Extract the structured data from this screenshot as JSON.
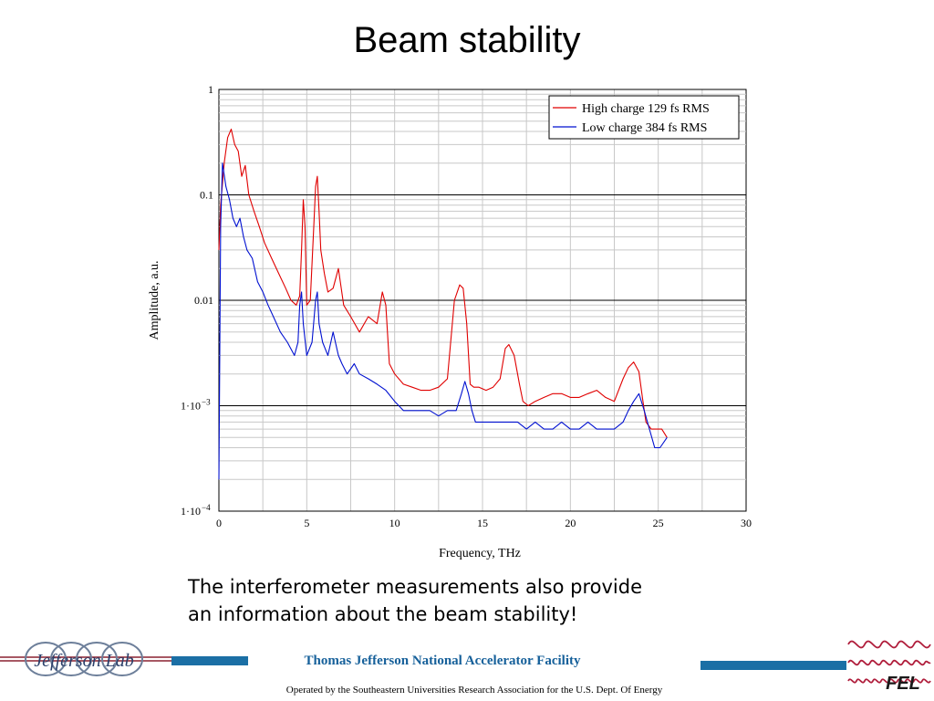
{
  "slide": {
    "title": "Beam stability",
    "caption_line1": "The interferometer measurements also provide",
    "caption_line2": "an information about the beam stability!"
  },
  "footer": {
    "organization": "Thomas Jefferson National Accelerator Facility",
    "operated_by": "Operated by the Southeastern Universities Research Association for the U.S. Dept. Of Energy",
    "left_logo_text": "Jefferson Lab",
    "right_logo_text": "FEL",
    "bar_color": "#1b6fa5"
  },
  "chart_data": {
    "type": "line",
    "xlabel": "Frequency, THz",
    "ylabel": "Amplitude, a.u.",
    "xlim": [
      0,
      30
    ],
    "ylim": [
      0.0001,
      1
    ],
    "yscale": "log",
    "grid": true,
    "legend_position": "top-right",
    "x_ticks": [
      0,
      5,
      10,
      15,
      20,
      25,
      30
    ],
    "x_tick_labels": [
      "0",
      "5",
      "10",
      "15",
      "20",
      "25",
      "30"
    ],
    "y_ticks": [
      1,
      0.1,
      0.01,
      0.001,
      0.0001
    ],
    "y_tick_labels": [
      "1",
      "0.1",
      "0.01",
      "1·10",
      "1·10"
    ],
    "y_tick_exponents": [
      "",
      "",
      "",
      "−3",
      "−4"
    ],
    "series": [
      {
        "name": "High charge 129 fs RMS",
        "color": "#e00000",
        "x": [
          0.0,
          0.1,
          0.3,
          0.5,
          0.7,
          0.9,
          1.1,
          1.3,
          1.5,
          1.7,
          2.0,
          2.3,
          2.6,
          3.0,
          3.4,
          3.8,
          4.1,
          4.4,
          4.6,
          4.7,
          4.8,
          4.9,
          5.0,
          5.2,
          5.4,
          5.5,
          5.6,
          5.7,
          5.8,
          6.0,
          6.2,
          6.5,
          6.8,
          7.1,
          7.5,
          8.0,
          8.5,
          9.0,
          9.3,
          9.5,
          9.7,
          10.0,
          10.5,
          11.0,
          11.5,
          12.0,
          12.5,
          13.0,
          13.4,
          13.7,
          13.9,
          14.1,
          14.3,
          14.5,
          14.8,
          15.2,
          15.6,
          16.0,
          16.3,
          16.5,
          16.8,
          17.1,
          17.3,
          17.6,
          18.0,
          18.5,
          19.0,
          19.5,
          20.0,
          20.5,
          21.0,
          21.5,
          22.0,
          22.5,
          23.0,
          23.3,
          23.6,
          23.9,
          24.1,
          24.3,
          24.6,
          24.9,
          25.2,
          25.5
        ],
        "values": [
          0.03,
          0.08,
          0.2,
          0.35,
          0.42,
          0.3,
          0.26,
          0.15,
          0.19,
          0.1,
          0.07,
          0.05,
          0.035,
          0.025,
          0.018,
          0.013,
          0.01,
          0.009,
          0.011,
          0.03,
          0.09,
          0.05,
          0.009,
          0.01,
          0.05,
          0.12,
          0.15,
          0.07,
          0.03,
          0.018,
          0.012,
          0.013,
          0.02,
          0.009,
          0.007,
          0.005,
          0.007,
          0.006,
          0.012,
          0.009,
          0.0025,
          0.002,
          0.0016,
          0.0015,
          0.0014,
          0.0014,
          0.0015,
          0.0018,
          0.01,
          0.014,
          0.013,
          0.006,
          0.0016,
          0.0015,
          0.0015,
          0.0014,
          0.0015,
          0.0018,
          0.0035,
          0.0038,
          0.003,
          0.0016,
          0.0011,
          0.001,
          0.0011,
          0.0012,
          0.0013,
          0.0013,
          0.0012,
          0.0012,
          0.0013,
          0.0014,
          0.0012,
          0.0011,
          0.0018,
          0.0023,
          0.0026,
          0.0021,
          0.0012,
          0.0007,
          0.0006,
          0.0006,
          0.0006,
          0.0005
        ]
      },
      {
        "name": "Low charge 384 fs RMS",
        "color": "#0010d0",
        "x": [
          0.0,
          0.1,
          0.2,
          0.4,
          0.6,
          0.8,
          1.0,
          1.2,
          1.4,
          1.6,
          1.9,
          2.2,
          2.5,
          2.8,
          3.1,
          3.5,
          3.9,
          4.3,
          4.5,
          4.6,
          4.7,
          4.8,
          5.0,
          5.3,
          5.5,
          5.6,
          5.7,
          5.9,
          6.2,
          6.5,
          6.8,
          7.0,
          7.3,
          7.7,
          8.0,
          8.5,
          9.0,
          9.5,
          10.0,
          10.5,
          11.0,
          11.5,
          12.0,
          12.5,
          13.0,
          13.5,
          13.8,
          14.0,
          14.2,
          14.4,
          14.6,
          15.0,
          15.5,
          16.0,
          16.5,
          17.0,
          17.5,
          18.0,
          18.5,
          19.0,
          19.5,
          20.0,
          20.5,
          21.0,
          21.5,
          22.0,
          22.5,
          23.0,
          23.3,
          23.6,
          23.9,
          24.2,
          24.5,
          24.8,
          25.1,
          25.5
        ],
        "values": [
          0.0002,
          0.05,
          0.2,
          0.12,
          0.09,
          0.06,
          0.05,
          0.06,
          0.04,
          0.03,
          0.025,
          0.015,
          0.012,
          0.009,
          0.007,
          0.005,
          0.004,
          0.003,
          0.004,
          0.009,
          0.012,
          0.006,
          0.003,
          0.004,
          0.01,
          0.012,
          0.006,
          0.004,
          0.003,
          0.005,
          0.003,
          0.0025,
          0.002,
          0.0025,
          0.002,
          0.0018,
          0.0016,
          0.0014,
          0.0011,
          0.0009,
          0.0009,
          0.0009,
          0.0009,
          0.0008,
          0.0009,
          0.0009,
          0.0013,
          0.0017,
          0.0013,
          0.0009,
          0.0007,
          0.0007,
          0.0007,
          0.0007,
          0.0007,
          0.0007,
          0.0006,
          0.0007,
          0.0006,
          0.0006,
          0.0007,
          0.0006,
          0.0006,
          0.0007,
          0.0006,
          0.0006,
          0.0006,
          0.0007,
          0.0009,
          0.0011,
          0.0013,
          0.0009,
          0.0006,
          0.0004,
          0.0004,
          0.0005
        ]
      }
    ]
  }
}
